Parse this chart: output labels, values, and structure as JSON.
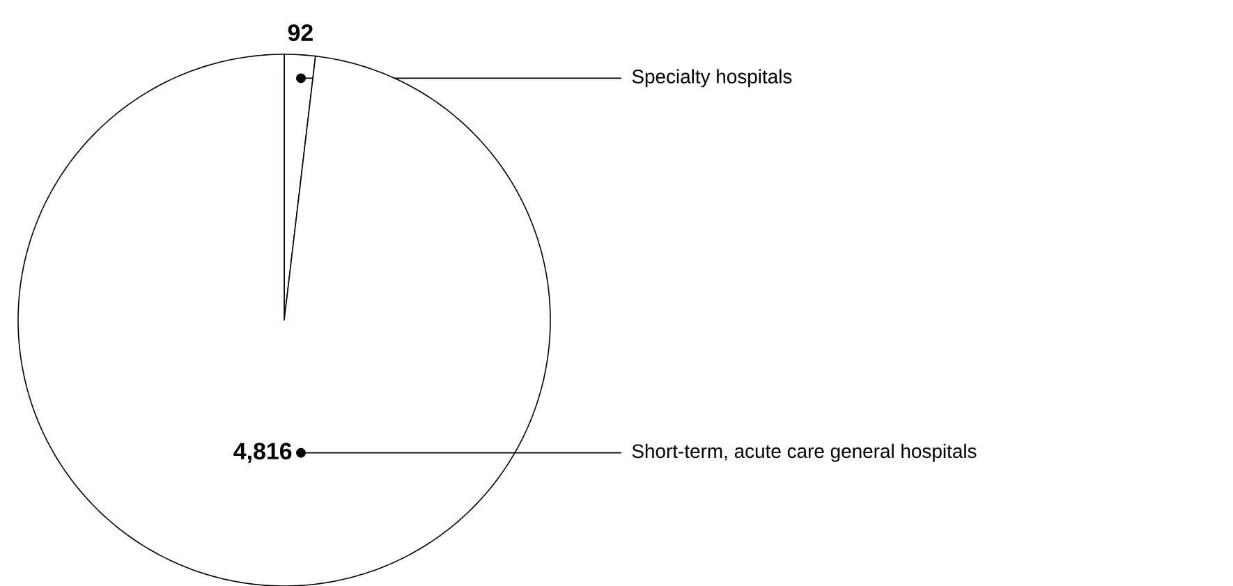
{
  "chart_data": {
    "type": "pie",
    "categories": [
      "Specialty hospitals",
      "Short-term, acute care general hospitals"
    ],
    "values": [
      92,
      4816
    ],
    "colors": [
      "#ffffff",
      "#ffffff"
    ],
    "value_labels": [
      "92",
      "4,816"
    ]
  }
}
